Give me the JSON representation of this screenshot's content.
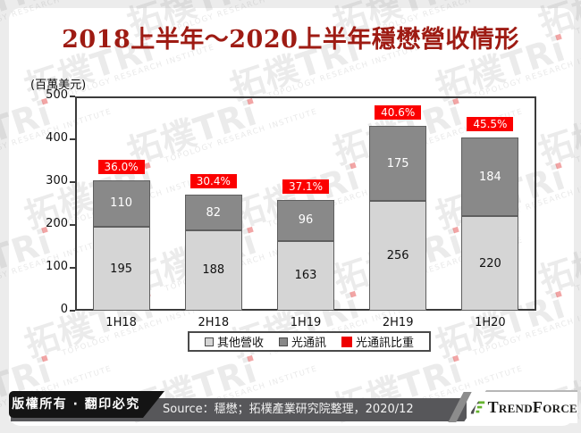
{
  "title": "2018上半年～2020上半年穩懋營收情形",
  "unit_label": "(百萬美元)",
  "chart_data": {
    "type": "bar",
    "stacked": true,
    "title": "2018上半年～2020上半年穩懋營收情形",
    "ylabel": "(百萬美元)",
    "ylim": [
      0,
      500
    ],
    "yticks": [
      0,
      100,
      200,
      300,
      400,
      500
    ],
    "grid": false,
    "legend_position": "bottom",
    "categories": [
      "1H18",
      "2H18",
      "1H19",
      "2H19",
      "1H20"
    ],
    "series": [
      {
        "name": "其他營收",
        "color": "#d5d5d5",
        "text_color": "#111111",
        "values": [
          195,
          188,
          163,
          256,
          220
        ]
      },
      {
        "name": "光通訊",
        "color": "#898989",
        "text_color": "#ffffff",
        "values": [
          110,
          82,
          96,
          175,
          184
        ]
      }
    ],
    "pct_series": {
      "name": "光通訊比重",
      "color": "#fb0000",
      "values": [
        36.0,
        30.4,
        37.1,
        40.6,
        45.5
      ],
      "labels": [
        "36.0%",
        "30.4%",
        "37.1%",
        "40.6%",
        "45.5%"
      ]
    }
  },
  "legend": {
    "items": [
      {
        "label": "其他營收",
        "color": "#d5d5d5"
      },
      {
        "label": "光通訊",
        "color": "#898989"
      },
      {
        "label": "光通訊比重",
        "color": "#ee0000"
      }
    ]
  },
  "footer": {
    "copyright": "版權所有 · 翻印必究",
    "source": "Source：穩懋；拓樸產業研究院整理，2020/12",
    "brand": "TrendForce",
    "brand_green": "#65b32e",
    "brand_dark": "#4d4d4f"
  },
  "watermark": {
    "brand_cjk": "拓樸",
    "brand_latin": "TRi",
    "caption": "TOPOLOGY RESEARCH INSTITUTE"
  }
}
